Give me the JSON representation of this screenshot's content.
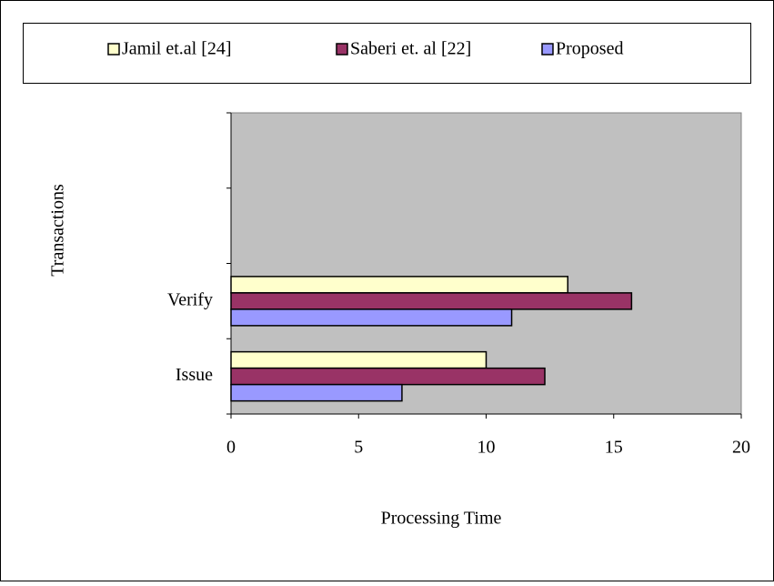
{
  "chart_data": {
    "type": "bar",
    "orientation": "horizontal",
    "x_label": "Processing Time",
    "y_label": "Transactions",
    "categories": [
      "Issue",
      "Verify",
      null,
      null
    ],
    "series": [
      {
        "name": "Jamil et.al [24]",
        "color": "#ffffcc",
        "values": [
          10.0,
          13.2,
          null,
          null
        ]
      },
      {
        "name": "Saberi et. al [22]",
        "color": "#993366",
        "values": [
          12.3,
          15.7,
          null,
          null
        ]
      },
      {
        "name": "Proposed",
        "color": "#9999ff",
        "values": [
          6.7,
          11.0,
          null,
          null
        ]
      }
    ],
    "xlim": [
      0,
      20
    ],
    "xticks": [
      0,
      5,
      10,
      15,
      20
    ],
    "grid": false,
    "legend": "top",
    "plot_background": "#c0c0c0"
  }
}
